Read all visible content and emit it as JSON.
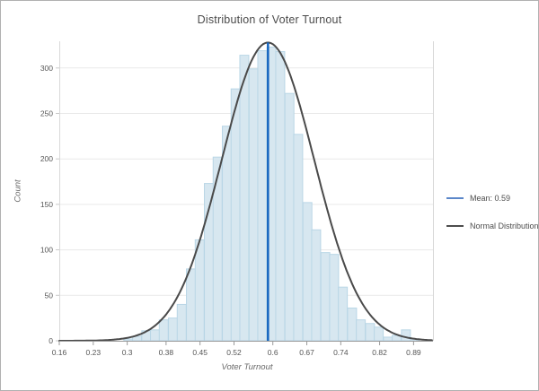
{
  "window": {
    "background": "#ffffff",
    "border_color": "#b1b1b1"
  },
  "title": "Distribution of Voter Turnout",
  "legend": {
    "entries": [
      {
        "label": "Mean: 0.59",
        "swatch_color": "#5b87c9"
      },
      {
        "label": "Normal Distribution",
        "swatch_color": "#4d4d4d"
      }
    ]
  },
  "chart_data": {
    "type": "bar",
    "subtype": "histogram",
    "title": "Distribution of Voter Turnout",
    "xlabel": "Voter Turnout",
    "ylabel": "Count",
    "x_range": [
      0.16,
      0.93
    ],
    "y_range": [
      0,
      330
    ],
    "grid": true,
    "legend_position": "right",
    "x_ticks": [
      0.16,
      0.23,
      0.3,
      0.38,
      0.45,
      0.52,
      0.6,
      0.67,
      0.74,
      0.82,
      0.89
    ],
    "x_tick_labels": [
      "0.16",
      "0.23",
      "0.3",
      "0.38",
      "0.45",
      "0.52",
      "0.6",
      "0.67",
      "0.74",
      "0.82",
      "0.89"
    ],
    "y_ticks": [
      0,
      50,
      100,
      150,
      200,
      250,
      300
    ],
    "y_tick_labels": [
      "0",
      "50",
      "100",
      "150",
      "200",
      "250",
      "300"
    ],
    "bin_width": 0.01845,
    "bin_start": [
      0.293,
      0.311,
      0.33,
      0.348,
      0.366,
      0.385,
      0.403,
      0.422,
      0.44,
      0.459,
      0.477,
      0.496,
      0.514,
      0.532,
      0.551,
      0.569,
      0.588,
      0.606,
      0.625,
      0.643,
      0.662,
      0.68,
      0.699,
      0.717,
      0.735,
      0.754,
      0.772,
      0.791,
      0.809,
      0.828,
      0.846,
      0.865,
      0.883
    ],
    "counts": [
      2,
      5,
      11,
      12,
      23,
      25,
      40,
      79,
      111,
      173,
      202,
      236,
      277,
      314,
      299,
      319,
      323,
      318,
      272,
      227,
      152,
      122,
      97,
      95,
      59,
      36,
      23,
      19,
      15,
      4,
      6,
      12,
      2
    ],
    "mean": 0.59,
    "mean_line": {
      "x": 0.59,
      "color": "#1565c0",
      "label": "Mean: 0.59"
    },
    "normal_curve": {
      "mu": 0.59,
      "sigma": 0.0953,
      "peak": 328,
      "color": "#4a4a4a",
      "label": "Normal Distribution"
    },
    "bar_fill": "#d7e7f0",
    "bar_stroke": "#b9d6e6",
    "gridline_color": "#e9e9e9",
    "axis_line_color": "#9a9a9a",
    "spine_color": "#d9d9d9"
  }
}
